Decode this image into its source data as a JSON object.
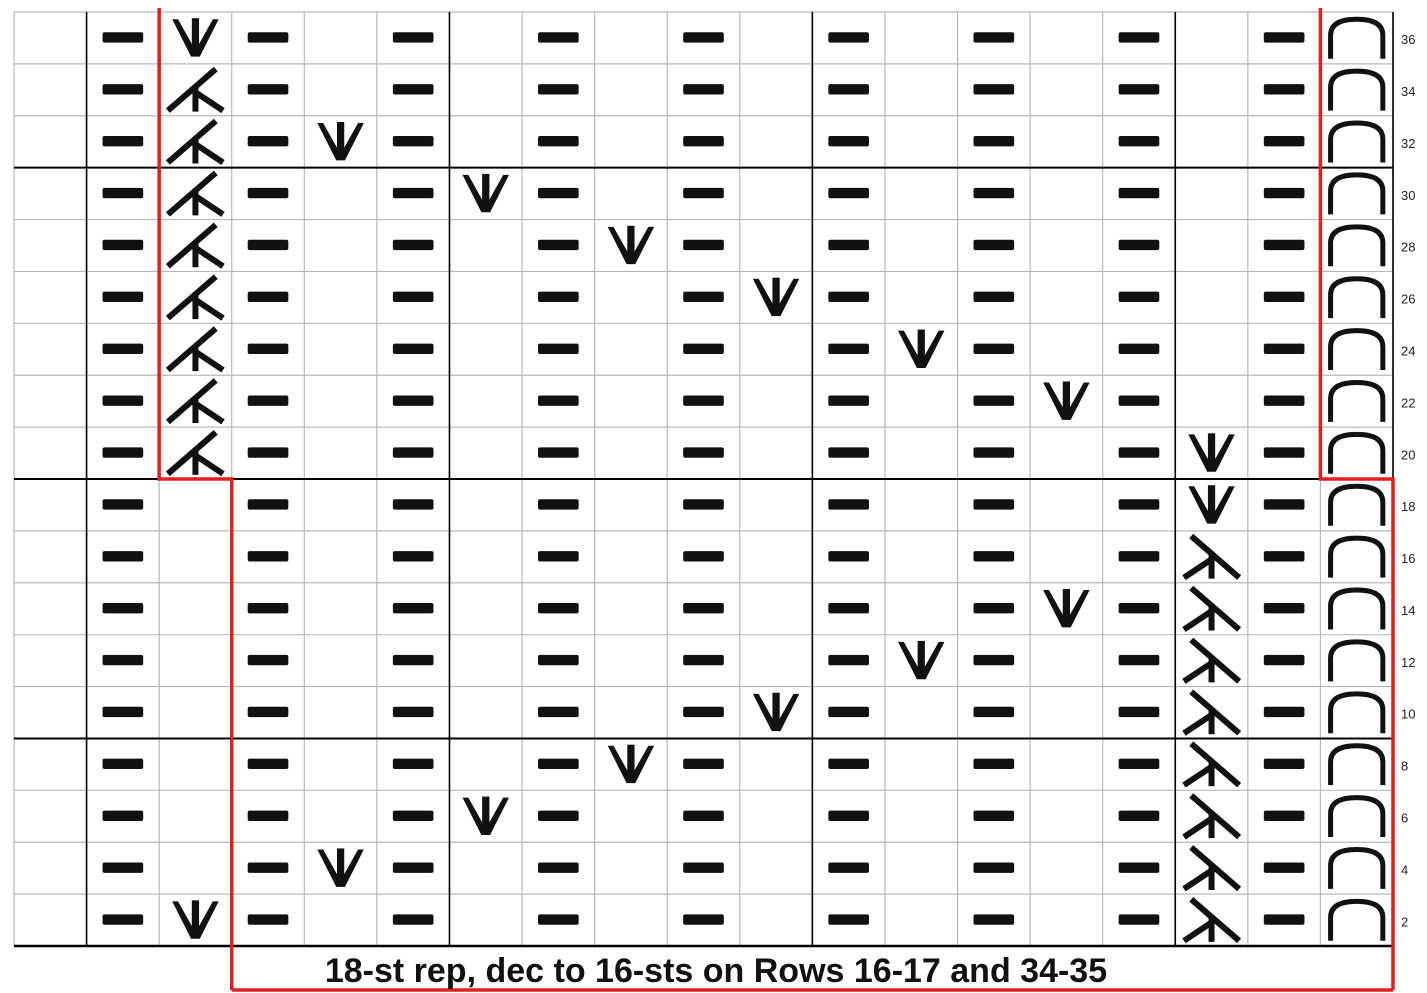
{
  "caption": "18-st rep, dec to 16-sts on Rows 16-17 and 34-35",
  "row_labels": [
    "36",
    "34",
    "32",
    "30",
    "28",
    "26",
    "24",
    "22",
    "20",
    "18",
    "16",
    "14",
    "12",
    "10",
    "8",
    "6",
    "4",
    "2"
  ],
  "colors": {
    "grid": "#b8b8b8",
    "grid_major": "#000000",
    "symbol": "#111111",
    "repeat_outline": "#e0201e",
    "background": "#ffffff"
  },
  "legend_symbols": {
    "P": "purl-dash-icon",
    "V": "increase-v-icon",
    "L": "left-slant-decrease-icon",
    "R": "right-slant-decrease-icon",
    "A": "arch-stitch-icon",
    ".": "blank-knit"
  },
  "chart_data": {
    "type": "table",
    "title": "",
    "rows": [
      {
        "label": "36",
        "cells": ".PVP.P.P.P.P.P.P.PA"
      },
      {
        "label": "34",
        "cells": ".PLP.P.P.P.P.P.P.PA"
      },
      {
        "label": "32",
        "cells": ".PLPVP.P.P.P.P.P.PA"
      },
      {
        "label": "30",
        "cells": ".PLP.PVP.P.P.P.P.PA"
      },
      {
        "label": "28",
        "cells": ".PLP.P.PVP.P.P.P.PA"
      },
      {
        "label": "26",
        "cells": ".PLP.P.P.PVP.P.P.PA"
      },
      {
        "label": "24",
        "cells": ".PLP.P.P.P.PVP.P.PA"
      },
      {
        "label": "22",
        "cells": ".PLP.P.P.P.P.PVP.PA"
      },
      {
        "label": "20",
        "cells": ".PLP.P.P.P.P.P.PVPA"
      },
      {
        "label": "18",
        "cells": ".P.P.P.P.P.P.P.PVPA"
      },
      {
        "label": "16",
        "cells": ".P.P.P.P.P.P.P.PRPA"
      },
      {
        "label": "14",
        "cells": ".P.P.P.P.P.P.PVPRPA"
      },
      {
        "label": "12",
        "cells": ".P.P.P.P.P.PVP.PRPA"
      },
      {
        "label": "10",
        "cells": ".P.P.P.P.PVP.P.PRPA"
      },
      {
        "label": "8",
        "cells": ".P.P.P.PVP.P.P.PRPA"
      },
      {
        "label": "6",
        "cells": ".P.P.PVP.P.P.P.PRPA"
      },
      {
        "label": "4",
        "cells": ".P.PVP.P.P.P.P.PRPA"
      },
      {
        "label": "2",
        "cells": ".PVP.P.P.P.P.P.PRPA"
      }
    ],
    "major_lines_after_rows": [
      32,
      20,
      10
    ],
    "thick_column_lines": [
      1,
      6,
      11,
      16,
      21
    ],
    "repeat_box": {
      "upper_cols": [
        2,
        18
      ],
      "lower_cols": [
        3,
        19
      ],
      "split_below_row": "20"
    }
  }
}
